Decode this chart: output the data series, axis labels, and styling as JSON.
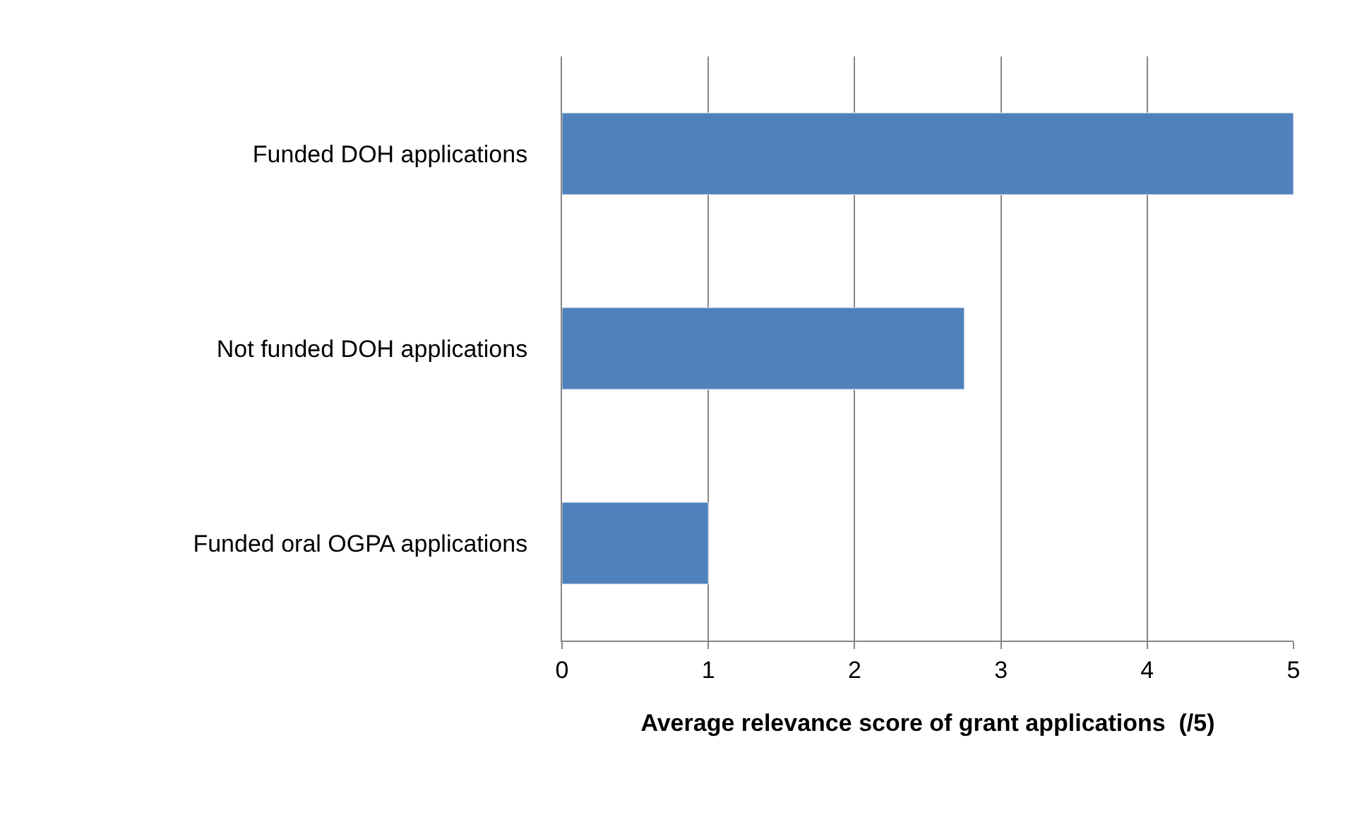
{
  "chart_data": {
    "type": "bar",
    "orientation": "horizontal",
    "categories": [
      "Funded DOH applications",
      "Not funded DOH applications",
      "Funded oral OGPA applications"
    ],
    "values": [
      5,
      2.75,
      1
    ],
    "color": "#4f81bd",
    "xlabel": "Average relevance score of grant applications  (/5)",
    "xlim": [
      0,
      5
    ],
    "xticks": [
      0,
      1,
      2,
      3,
      4,
      5
    ],
    "grid": "x"
  }
}
